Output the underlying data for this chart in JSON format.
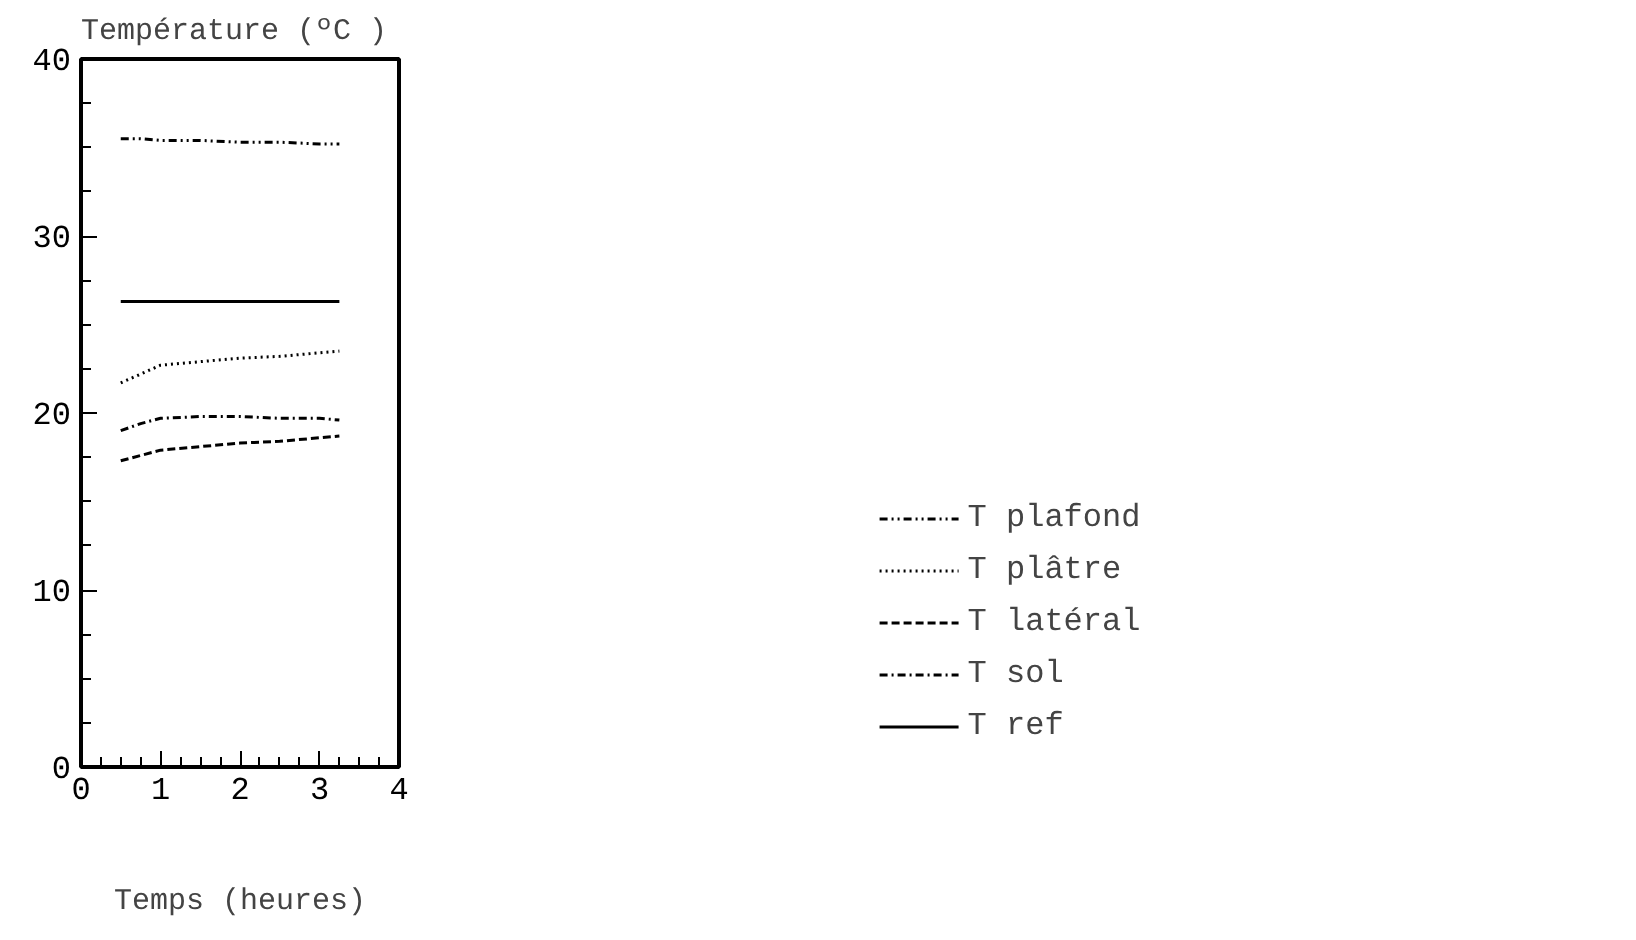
{
  "chart_data": {
    "type": "line",
    "xlabel": "Temps (heures)",
    "ylabel": "Température (ºC )",
    "x": [
      0.5,
      0.75,
      1,
      1.5,
      2,
      2.5,
      3,
      3.25
    ],
    "xlim": [
      0,
      4
    ],
    "xticks": [
      0,
      1,
      2,
      3,
      4
    ],
    "ylim": [
      0,
      40
    ],
    "yticks": [
      0,
      10,
      20,
      30,
      40
    ],
    "grid": false,
    "legend": "right",
    "marker": "none",
    "series": [
      {
        "name": "T plafond",
        "color": "#000000",
        "line_style": "dashdotdot",
        "values": [
          35.5,
          35.5,
          35.4,
          35.4,
          35.3,
          35.3,
          35.2,
          35.2
        ]
      },
      {
        "name": "T plâtre",
        "color": "#000000",
        "line_style": "dotted",
        "values": [
          21.7,
          22.2,
          22.7,
          22.9,
          23.1,
          23.2,
          23.4,
          23.5
        ]
      },
      {
        "name": "T latéral",
        "color": "#000000",
        "line_style": "dashed",
        "values": [
          17.3,
          17.6,
          17.9,
          18.1,
          18.3,
          18.4,
          18.6,
          18.7
        ]
      },
      {
        "name": "T sol",
        "color": "#000000",
        "line_style": "dashdot",
        "values": [
          19.0,
          19.4,
          19.7,
          19.8,
          19.8,
          19.7,
          19.7,
          19.6
        ]
      },
      {
        "name": "T ref",
        "color": "#000000",
        "line_style": "solid",
        "values": [
          26.3,
          26.3,
          26.3,
          26.3,
          26.3,
          26.3,
          26.3,
          26.3
        ]
      }
    ]
  }
}
